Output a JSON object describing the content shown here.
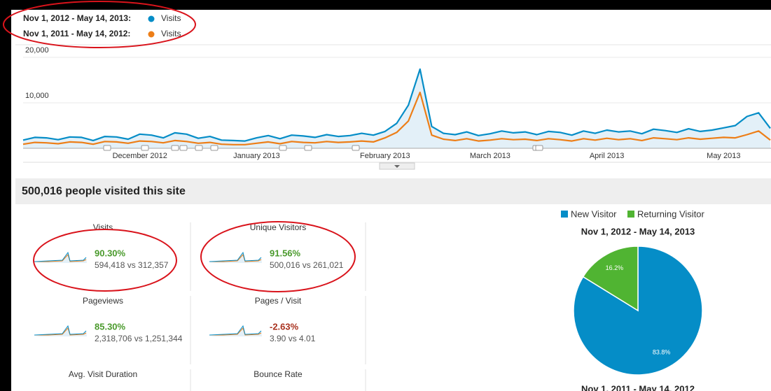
{
  "chart_data": [
    {
      "type": "line",
      "categories": [
        null,
        null,
        null,
        null,
        null,
        null,
        null,
        null,
        null,
        null,
        "December 2012",
        null,
        null,
        null,
        null,
        null,
        null,
        null,
        null,
        null,
        "January 2013",
        null,
        null,
        null,
        null,
        null,
        null,
        null,
        null,
        null,
        null,
        "February 2013",
        null,
        null,
        null,
        null,
        null,
        null,
        null,
        null,
        "March 2013",
        null,
        null,
        null,
        null,
        null,
        null,
        null,
        null,
        null,
        "April 2013",
        null,
        null,
        null,
        null,
        null,
        null,
        null,
        null,
        null,
        "May 2013",
        null,
        null,
        null,
        null
      ],
      "series": [
        {
          "name": "Nov 1, 2012 - May 14, 2013:",
          "metric": "Visits",
          "color": "#058dc7",
          "fill_color": "#e3f0f8",
          "values": [
            1800,
            2400,
            2300,
            1900,
            2500,
            2400,
            1700,
            2600,
            2500,
            2000,
            3100,
            2900,
            2300,
            3400,
            3100,
            2200,
            2600,
            1800,
            1700,
            1600,
            2300,
            2800,
            2100,
            2900,
            2700,
            2400,
            3000,
            2600,
            2800,
            3300,
            2900,
            3700,
            5500,
            9500,
            17400,
            4800,
            3300,
            3000,
            3600,
            2800,
            3200,
            3800,
            3400,
            3600,
            3000,
            3700,
            3500,
            2900,
            3800,
            3300,
            4000,
            3600,
            3800,
            3200,
            4200,
            3900,
            3500,
            4300,
            3700,
            4000,
            4500,
            5000,
            7000,
            7800,
            4400
          ]
        },
        {
          "name": "Nov 1, 2011 - May 14, 2012:",
          "metric": "Visits",
          "color": "#ed7e17",
          "values": [
            900,
            1300,
            1200,
            1000,
            1400,
            1300,
            900,
            1500,
            1400,
            1100,
            1600,
            1500,
            1200,
            1700,
            1500,
            1100,
            1300,
            900,
            800,
            800,
            1100,
            1400,
            1000,
            1500,
            1300,
            1200,
            1500,
            1300,
            1400,
            1600,
            1400,
            2300,
            3500,
            6000,
            12300,
            2900,
            2000,
            1700,
            2100,
            1600,
            1800,
            2100,
            1900,
            2000,
            1700,
            2100,
            1900,
            1600,
            2100,
            1800,
            2200,
            1900,
            2100,
            1700,
            2300,
            2100,
            1900,
            2300,
            2000,
            2200,
            2400,
            2300,
            3000,
            3800,
            1800
          ]
        }
      ],
      "ylim": [
        0,
        20000
      ],
      "yticks": [
        {
          "value": 10000,
          "label": "10,000"
        },
        {
          "value": 20000,
          "label": "20,000"
        }
      ],
      "grid": true
    },
    {
      "type": "pie",
      "title": "Nov 1, 2012 - May 14, 2013",
      "second_title": "Nov 1, 2011 - May 14, 2012",
      "categories": [
        "New Visitor",
        "Returning Visitor"
      ],
      "values": [
        83.8,
        16.2
      ],
      "value_labels": [
        "83.8%",
        "16.2%"
      ],
      "colors": [
        "#058dc7",
        "#50b432"
      ]
    }
  ],
  "summary_title": "500,016 people visited this site",
  "metrics": [
    {
      "name": "Visits",
      "change": "90.30%",
      "comparison": "594,418 vs 312,357",
      "change_color": "#4a9a2c"
    },
    {
      "name": "Unique Visitors",
      "change": "91.56%",
      "comparison": "500,016 vs 261,021",
      "change_color": "#4a9a2c"
    },
    {
      "name": "Pageviews",
      "change": "85.30%",
      "comparison": "2,318,706 vs 1,251,344",
      "change_color": "#4a9a2c"
    },
    {
      "name": "Pages / Visit",
      "change": "-2.63%",
      "comparison": "3.90 vs 4.01",
      "change_color": "#a8301d"
    },
    {
      "name": "Avg. Visit Duration"
    },
    {
      "name": "Bounce Rate"
    }
  ]
}
